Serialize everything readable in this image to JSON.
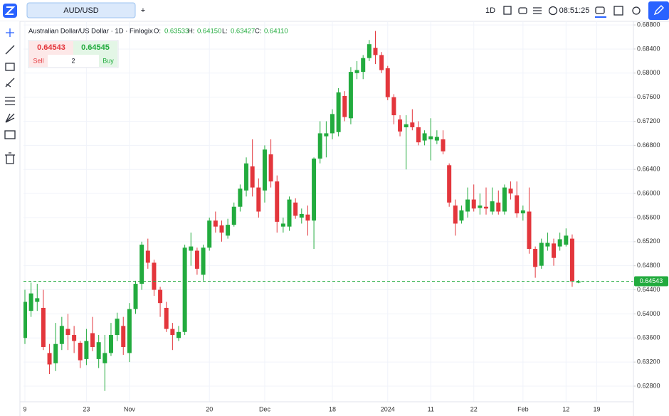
{
  "toolbar": {
    "tab": "AUD/USD",
    "add_tab": "+",
    "interval": "1D",
    "clock": "08:51:25"
  },
  "legend": {
    "title": "Australian Dollar/US Dollar · 1D · Finlogix",
    "o_label": "O:",
    "o": "0.63533",
    "h_label": "H:",
    "h": "0.64150",
    "l_label": "L:",
    "l": "0.63427",
    "c_label": "C:",
    "c": "0.64110"
  },
  "trade": {
    "sell_price": "0.64543",
    "buy_price": "0.64545",
    "sell": "Sell",
    "quantity": "2",
    "buy": "Buy"
  },
  "chart_data": {
    "type": "candlestick",
    "categories": [
      "9",
      null,
      null,
      null,
      null,
      null,
      null,
      null,
      null,
      null,
      "23",
      null,
      null,
      null,
      null,
      null,
      null,
      "Nov",
      null,
      null,
      null,
      null,
      null,
      null,
      null,
      null,
      null,
      null,
      null,
      null,
      "20",
      null,
      null,
      null,
      null,
      null,
      null,
      null,
      null,
      "Dec",
      null,
      null,
      null,
      null,
      null,
      null,
      null,
      null,
      null,
      null,
      "18",
      null,
      null,
      null,
      null,
      null,
      null,
      null,
      null,
      "2024",
      null,
      null,
      null,
      null,
      null,
      null,
      "11",
      null,
      null,
      null,
      null,
      null,
      null,
      "22",
      null,
      null,
      null,
      null,
      null,
      null,
      null,
      "Feb",
      null,
      null,
      null,
      null,
      null,
      null,
      "12",
      null,
      null,
      null,
      null,
      "19"
    ],
    "open": [
      0.636,
      0.6405,
      0.642,
      0.641,
      0.6335,
      0.6318,
      0.635,
      0.6375,
      0.6365,
      0.6352,
      0.6325,
      0.6368,
      0.6325,
      0.6318,
      0.6335,
      0.6365,
      0.638,
      0.6335,
      0.6408,
      0.645,
      0.6505,
      0.6485,
      0.644,
      0.641,
      0.6375,
      0.636,
      0.637,
      0.6505,
      0.6505,
      0.6465,
      0.651,
      0.6555,
      0.6547,
      0.653,
      0.6548,
      0.6578,
      0.6605,
      0.6645,
      0.661,
      0.6605,
      0.6665,
      0.662,
      0.6545,
      0.6545,
      0.6585,
      0.656,
      0.6565,
      0.6555,
      0.6658,
      0.6695,
      0.67,
      0.6702,
      0.6762,
      0.6725,
      0.68,
      0.6802,
      0.6825,
      0.6842,
      0.683,
      0.6808,
      0.676,
      0.6723,
      0.671,
      0.6718,
      0.671,
      0.6688,
      0.669,
      0.6688,
      0.669,
      0.6647,
      0.658,
      0.6555,
      0.657,
      0.659,
      0.6576,
      0.6578,
      0.657,
      0.6585,
      0.657,
      0.6608,
      0.6597,
      0.6567,
      0.657,
      0.6508,
      0.648,
      0.6512,
      0.6517,
      0.6512,
      0.6515,
      0.6525,
      0.6452,
      null,
      null,
      null
    ],
    "high": [
      0.644,
      0.6452,
      0.645,
      0.644,
      0.635,
      0.6385,
      0.6395,
      0.64,
      0.638,
      0.6355,
      0.6375,
      0.6395,
      0.6365,
      0.6365,
      0.6385,
      0.6402,
      0.6395,
      0.6418,
      0.6455,
      0.652,
      0.6525,
      0.649,
      0.6445,
      0.642,
      0.6385,
      0.638,
      0.6515,
      0.6535,
      0.651,
      0.6515,
      0.656,
      0.657,
      0.6555,
      0.6558,
      0.6585,
      0.6615,
      0.666,
      0.669,
      0.6625,
      0.668,
      0.669,
      0.663,
      0.656,
      0.6595,
      0.6592,
      0.6575,
      0.658,
      0.666,
      0.672,
      0.672,
      0.674,
      0.6775,
      0.677,
      0.681,
      0.682,
      0.683,
      0.6855,
      0.687,
      0.6835,
      0.6812,
      0.6765,
      0.673,
      0.673,
      0.674,
      0.672,
      0.6705,
      0.6725,
      0.6705,
      0.6705,
      0.665,
      0.659,
      0.658,
      0.661,
      0.6615,
      0.66,
      0.661,
      0.661,
      0.6605,
      0.6615,
      0.662,
      0.662,
      0.658,
      0.661,
      0.6512,
      0.6525,
      0.6535,
      0.6525,
      0.6535,
      0.6542,
      0.6532,
      0.6456,
      null,
      null,
      null
    ],
    "low": [
      0.635,
      0.6395,
      0.6405,
      0.634,
      0.63,
      0.6305,
      0.634,
      0.634,
      0.6335,
      0.631,
      0.6315,
      0.6338,
      0.631,
      0.6272,
      0.633,
      0.6355,
      0.6332,
      0.632,
      0.64,
      0.644,
      0.6475,
      0.643,
      0.6395,
      0.637,
      0.634,
      0.6355,
      0.6365,
      0.648,
      0.6465,
      0.6455,
      0.6505,
      0.6535,
      0.652,
      0.6525,
      0.6545,
      0.657,
      0.6595,
      0.6595,
      0.656,
      0.6585,
      0.661,
      0.6535,
      0.6535,
      0.6538,
      0.6558,
      0.655,
      0.653,
      0.6508,
      0.665,
      0.666,
      0.669,
      0.6695,
      0.672,
      0.6715,
      0.679,
      0.679,
      0.682,
      0.6815,
      0.68,
      0.6755,
      0.6715,
      0.6695,
      0.664,
      0.6705,
      0.668,
      0.668,
      0.6655,
      0.6682,
      0.6665,
      0.6578,
      0.653,
      0.655,
      0.656,
      0.657,
      0.6565,
      0.6565,
      0.6565,
      0.6565,
      0.6565,
      0.659,
      0.656,
      0.6555,
      0.65,
      0.646,
      0.6475,
      0.6505,
      0.648,
      0.6505,
      0.6512,
      0.6445,
      0.6451,
      null,
      null,
      null
    ],
    "close": [
      0.642,
      0.6434,
      0.6426,
      0.6345,
      0.6316,
      0.635,
      0.638,
      0.6365,
      0.6355,
      0.6323,
      0.6355,
      0.6345,
      0.6353,
      0.6335,
      0.6365,
      0.6392,
      0.6345,
      0.6408,
      0.645,
      0.6515,
      0.6485,
      0.644,
      0.6418,
      0.6375,
      0.6365,
      0.637,
      0.651,
      0.6512,
      0.6475,
      0.651,
      0.6555,
      0.6545,
      0.6535,
      0.6548,
      0.6578,
      0.6608,
      0.665,
      0.661,
      0.657,
      0.6673,
      0.662,
      0.6553,
      0.655,
      0.659,
      0.6563,
      0.6566,
      0.6555,
      0.6658,
      0.67,
      0.67,
      0.6732,
      0.6768,
      0.6727,
      0.6802,
      0.6805,
      0.6825,
      0.6848,
      0.683,
      0.6805,
      0.676,
      0.673,
      0.6703,
      0.6715,
      0.671,
      0.6685,
      0.67,
      0.6695,
      0.6694,
      0.667,
      0.6585,
      0.655,
      0.6572,
      0.659,
      0.6575,
      0.658,
      0.6575,
      0.6587,
      0.657,
      0.661,
      0.66,
      0.6567,
      0.6572,
      0.6508,
      0.6478,
      0.6518,
      0.6518,
      0.6493,
      0.6524,
      0.653,
      0.6454,
      0.6454,
      null,
      null,
      null
    ],
    "up_color": "#22ab3e",
    "down_color": "#e3363c",
    "ylim": [
      0.6254,
      0.6886
    ],
    "yticks": [
      {
        "value": 0.628,
        "label": "0.62800"
      },
      {
        "value": 0.632,
        "label": "0.63200"
      },
      {
        "value": 0.636,
        "label": "0.63600"
      },
      {
        "value": 0.64,
        "label": "0.64000"
      },
      {
        "value": 0.644,
        "label": "0.64400"
      },
      {
        "value": 0.648,
        "label": "0.64800"
      },
      {
        "value": 0.652,
        "label": "0.65200"
      },
      {
        "value": 0.656,
        "label": "0.65600"
      },
      {
        "value": 0.66,
        "label": "0.66000"
      },
      {
        "value": 0.664,
        "label": "0.66400"
      },
      {
        "value": 0.668,
        "label": "0.66800"
      },
      {
        "value": 0.672,
        "label": "0.67200"
      },
      {
        "value": 0.676,
        "label": "0.67600"
      },
      {
        "value": 0.68,
        "label": "0.68000"
      },
      {
        "value": 0.684,
        "label": "0.68400"
      },
      {
        "value": 0.688,
        "label": "0.68800"
      }
    ],
    "last_price": {
      "value": 0.64543,
      "label": "0.64543"
    },
    "grid": true
  }
}
